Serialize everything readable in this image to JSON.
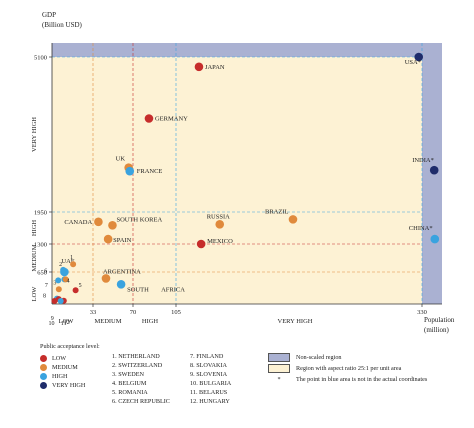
{
  "chart_data": {
    "type": "scatter",
    "ylabel_top": "GDP",
    "ylabel_unit": "(Billion USD)",
    "xlabel": "Population",
    "xlabel_unit": "(million)",
    "x_ticks": [
      "33",
      "70",
      "105",
      "330"
    ],
    "y_ticks": [
      "650",
      "1300",
      "1950",
      "5100"
    ],
    "y_bands": [
      "LOW",
      "MEDIUM",
      "HIGH",
      "VERY HIGH"
    ],
    "x_bands": [
      "LOW",
      "MEDIUM",
      "HIGH",
      "VERY HIGH"
    ],
    "colors": {
      "low": "#c62d2b",
      "medium": "#e08a3c",
      "high": "#3aa3df",
      "very_high": "#1f2c6b"
    },
    "points": [
      {
        "label": "JAPAN",
        "x": 126,
        "y": 4900,
        "level": "low"
      },
      {
        "label": "GERMANY",
        "x": 83,
        "y": 3850,
        "level": "low"
      },
      {
        "label": "UK",
        "x": 66,
        "y": 2850,
        "level": "medium"
      },
      {
        "label": "FRANCE",
        "x": 67,
        "y": 2780,
        "level": "high"
      },
      {
        "label": "USA*",
        "x": 327,
        "y": 5100,
        "level": "very_high"
      },
      {
        "label": "INDIA*",
        "x": 1350,
        "y": 2800,
        "level": "very_high"
      },
      {
        "label": "CHINA*",
        "x": 1400,
        "y": 1400,
        "level": "high"
      },
      {
        "label": "BRAZIL",
        "x": 212,
        "y": 1800,
        "level": "medium"
      },
      {
        "label": "RUSSIA",
        "x": 145,
        "y": 1700,
        "level": "medium"
      },
      {
        "label": "MEXICO",
        "x": 128,
        "y": 1300,
        "level": "low"
      },
      {
        "label": "CANADA",
        "x": 38,
        "y": 1750,
        "level": "medium"
      },
      {
        "label": "SOUTH KOREA",
        "x": 51,
        "y": 1680,
        "level": "medium"
      },
      {
        "label": "SPAIN",
        "x": 47,
        "y": 1400,
        "level": "medium"
      },
      {
        "label": "ARGENTINA",
        "x": 45,
        "y": 520,
        "level": "medium"
      },
      {
        "label": "SOUTH AFRICA",
        "x": 59,
        "y": 400,
        "level": "high"
      },
      {
        "label": "UAE",
        "x": 10,
        "y": 650,
        "level": "high"
      },
      {
        "label": "1",
        "x": 17,
        "y": 830,
        "level": "medium"
      },
      {
        "label": "2",
        "x": 9,
        "y": 700,
        "level": "high"
      },
      {
        "label": "3",
        "x": 10,
        "y": 500,
        "level": "high"
      },
      {
        "label": "4",
        "x": 11,
        "y": 500,
        "level": "medium"
      },
      {
        "label": "5",
        "x": 19,
        "y": 280,
        "level": "low"
      },
      {
        "label": "6",
        "x": 5,
        "y": 480,
        "level": "high"
      },
      {
        "label": "7",
        "x": 5.5,
        "y": 300,
        "level": "medium"
      },
      {
        "label": "8",
        "x": 4,
        "y": 110,
        "level": "high"
      },
      {
        "label": "9",
        "x": 5.4,
        "y": 100,
        "level": "low"
      },
      {
        "label": "10",
        "x": 2,
        "y": 60,
        "level": "low"
      },
      {
        "label": "11",
        "x": 9.5,
        "y": 65,
        "level": "low"
      },
      {
        "label": "12",
        "x": 7,
        "y": 60,
        "level": "high"
      }
    ],
    "legend_note": "Region with aspect ratio 25:1 per unit area"
  },
  "legend": {
    "title": "Public acceptance level:",
    "levels": [
      "LOW",
      "MEDIUM",
      "HIGH",
      "VERY HIGH"
    ],
    "countries_col1": [
      "1. NETHERLAND",
      "2. SWITZERLAND",
      "3. SWEDEN",
      "4. BELGIUM",
      "5. ROMANIA",
      "6. CZECH REPUBLIC"
    ],
    "countries_col2": [
      "7. FINLAND",
      "8. SLOVAKIA",
      "9. SLOVENIA",
      "10. BULGARIA",
      "11. BELARUS",
      "12. HUNGARY"
    ],
    "notes": [
      "Non-scaled region",
      "Region with aspect ratio 25:1 per unit area",
      "The point in blue area is not in the actual coordinates"
    ]
  }
}
